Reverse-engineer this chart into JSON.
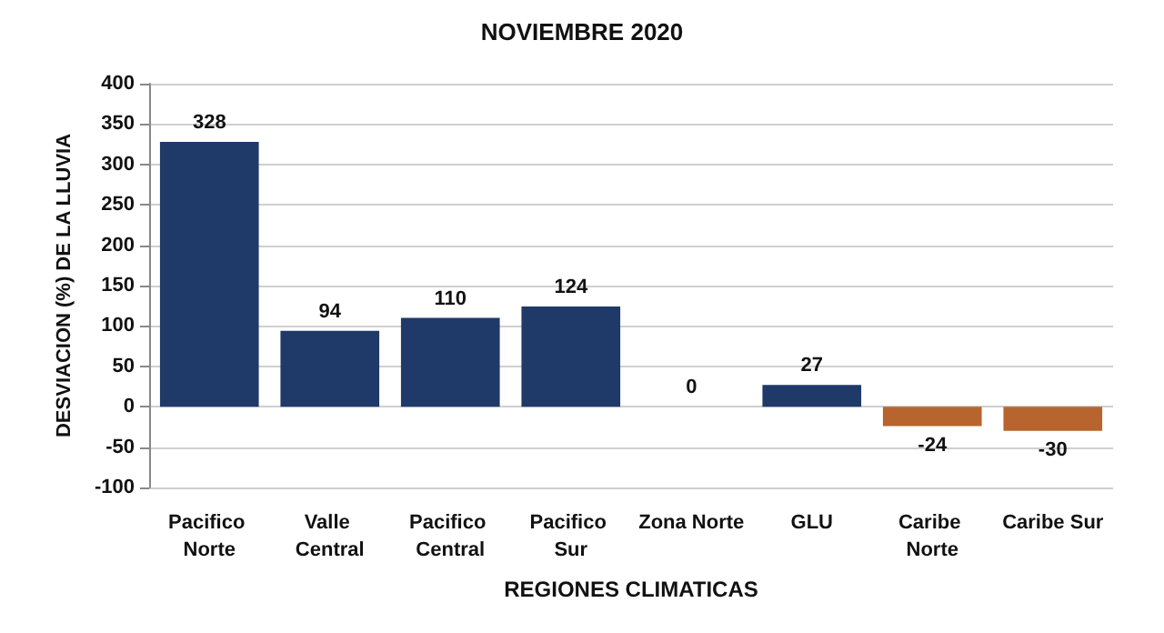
{
  "chart_data": {
    "type": "bar",
    "title": "NOVIEMBRE 2020",
    "xlabel": "REGIONES CLIMATICAS",
    "ylabel": "DESVIACION (%) DE LA LLUVIA",
    "categories": [
      "Pacifico Norte",
      "Valle Central",
      "Pacifico Central",
      "Pacifico Sur",
      "Zona Norte",
      "GLU",
      "Caribe Norte",
      "Caribe Sur"
    ],
    "values": [
      328,
      94,
      110,
      124,
      0,
      27,
      -24,
      -30
    ],
    "colors": [
      "#1f3a68",
      "#1f3a68",
      "#1f3a68",
      "#1f3a68",
      "#1f3a68",
      "#1f3a68",
      "#b8642e",
      "#b8642e"
    ],
    "ylim": [
      -100,
      400
    ],
    "yticks": [
      -100,
      -50,
      0,
      50,
      100,
      150,
      200,
      250,
      300,
      350,
      400
    ],
    "grid": "y",
    "data_labels": true
  }
}
